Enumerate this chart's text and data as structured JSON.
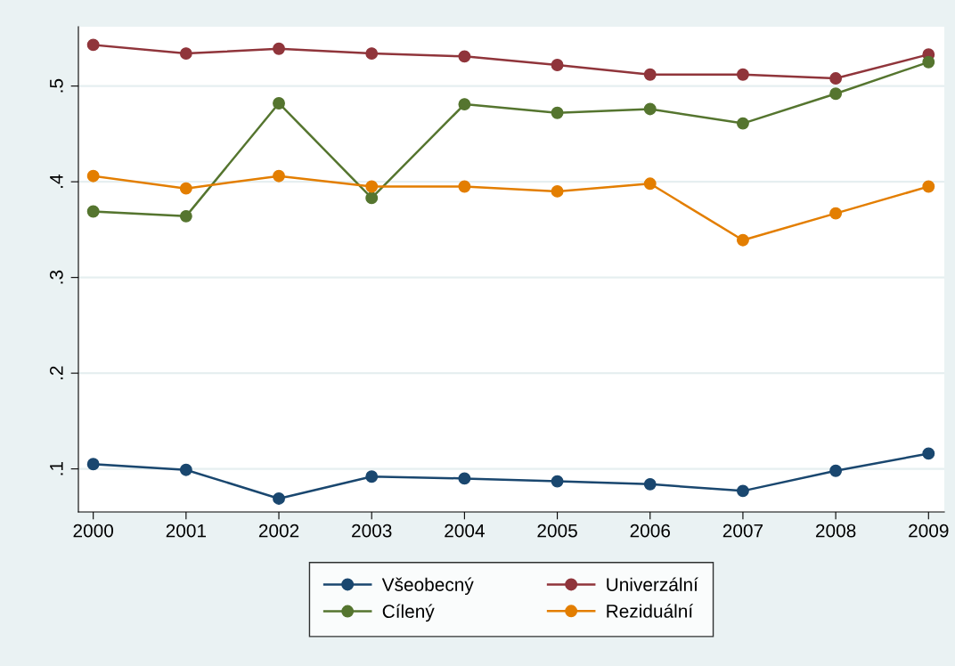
{
  "chart_data": {
    "type": "line",
    "x": [
      2000,
      2001,
      2002,
      2003,
      2004,
      2005,
      2006,
      2007,
      2008,
      2009
    ],
    "series": [
      {
        "name": "Všeobecný",
        "color": "#1a476f",
        "values": [
          0.105,
          0.099,
          0.069,
          0.092,
          0.09,
          0.087,
          0.084,
          0.077,
          0.098,
          0.116
        ]
      },
      {
        "name": "Univerzální",
        "color": "#90353b",
        "values": [
          0.543,
          0.534,
          0.539,
          0.534,
          0.531,
          0.522,
          0.512,
          0.512,
          0.508,
          0.533
        ]
      },
      {
        "name": "Cílený",
        "color": "#55752f",
        "values": [
          0.369,
          0.364,
          0.482,
          0.383,
          0.481,
          0.472,
          0.476,
          0.461,
          0.492,
          0.525
        ]
      },
      {
        "name": "Reziduální",
        "color": "#e37e00",
        "values": [
          0.406,
          0.393,
          0.406,
          0.395,
          0.395,
          0.39,
          0.398,
          0.339,
          0.367,
          0.395
        ]
      }
    ],
    "xlim": [
      1999.84,
      2009.17
    ],
    "ylim": [
      0.055,
      0.562
    ],
    "xticks": [
      2000,
      2001,
      2002,
      2003,
      2004,
      2005,
      2006,
      2007,
      2008,
      2009
    ],
    "yticks": [
      {
        "value": 0.1,
        "label": ".1"
      },
      {
        "value": 0.2,
        "label": ".2"
      },
      {
        "value": 0.3,
        "label": ".3"
      },
      {
        "value": 0.4,
        "label": ".4"
      },
      {
        "value": 0.5,
        "label": ".5"
      }
    ],
    "grid": "y",
    "legend": "bottom",
    "marker": "circle",
    "line_style": "solid"
  }
}
